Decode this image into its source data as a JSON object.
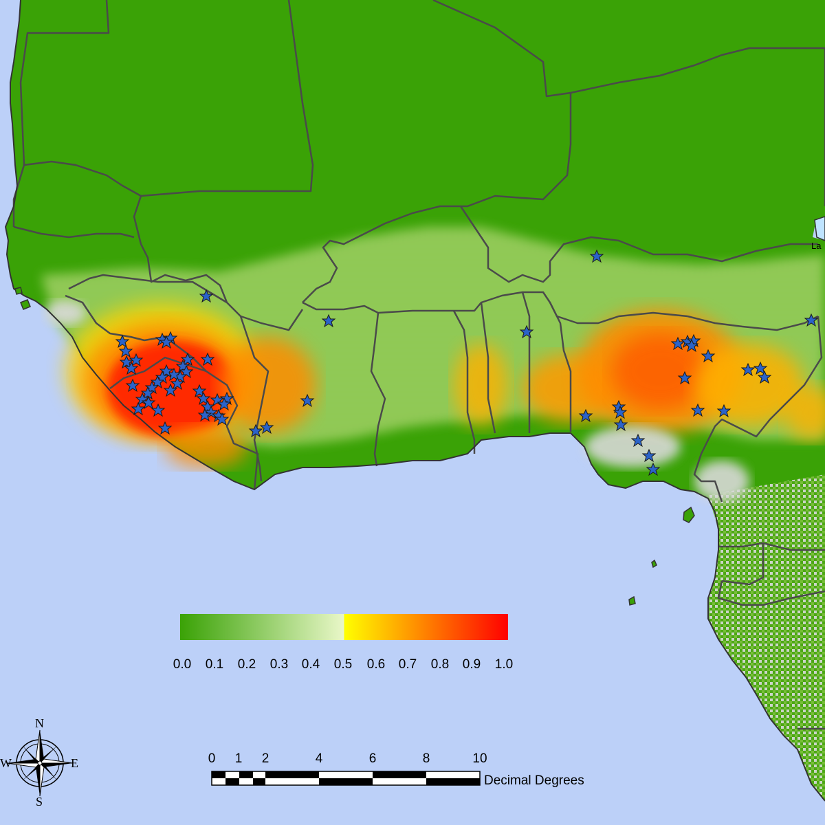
{
  "legend": {
    "colors": [
      "#3aa206",
      "#e9f7c8",
      "#ffff00",
      "#ff8000",
      "#ff0000"
    ],
    "ticks": [
      "0.0",
      "0.1",
      "0.2",
      "0.3",
      "0.4",
      "0.5",
      "0.6",
      "0.7",
      "0.8",
      "0.9",
      "1.0"
    ]
  },
  "scale_bar": {
    "ticks": [
      "0",
      "1",
      "2",
      "4",
      "6",
      "8",
      "10"
    ],
    "unit": "Decimal Degrees"
  },
  "compass": {
    "north": "N",
    "south": "S",
    "east": "E",
    "west": "W"
  },
  "place_label": "La",
  "colors": {
    "ocean": "#bcd0f8",
    "land_low": "#3aa206",
    "land_mid": "#9ad060",
    "grey": "#d9d9d9",
    "high": "#ff2a00",
    "mid_high": "#ff8c00",
    "yellow": "#ffd400",
    "marker": "#2b63c9",
    "border": "#4a4a4a"
  },
  "markers_description": "occurrence-star-icon"
}
